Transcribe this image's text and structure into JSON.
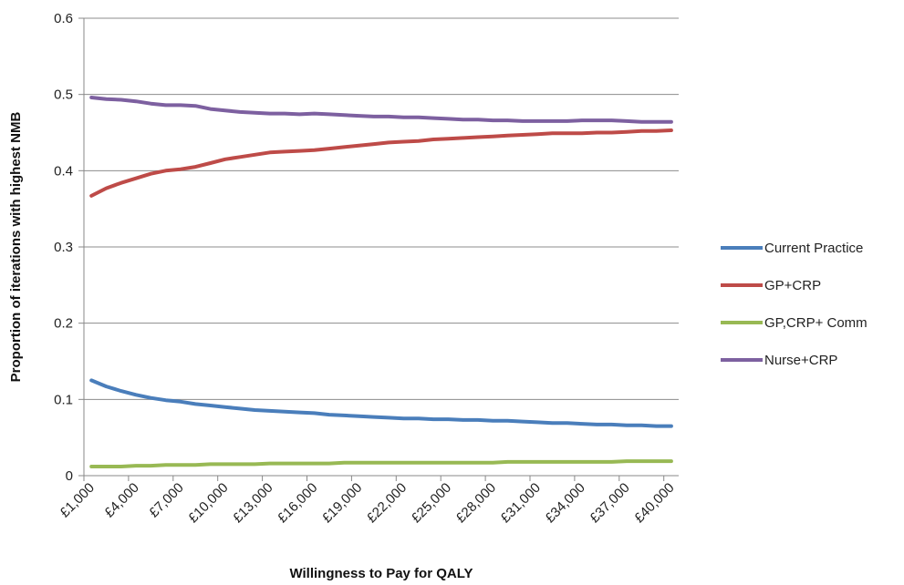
{
  "chart_data": {
    "type": "line",
    "xlabel": "Willingness to Pay for QALY",
    "ylabel": "Proportion of iterations with highest NMB",
    "ylim": [
      0,
      0.6
    ],
    "yticks": [
      0,
      0.1,
      0.2,
      0.3,
      0.4,
      0.5,
      0.6
    ],
    "ytick_labels": [
      "0",
      "0.1",
      "0.2",
      "0.3",
      "0.4",
      "0.5",
      "0.6"
    ],
    "x": [
      1000,
      2000,
      3000,
      4000,
      5000,
      6000,
      7000,
      8000,
      9000,
      10000,
      11000,
      12000,
      13000,
      14000,
      15000,
      16000,
      17000,
      18000,
      19000,
      20000,
      21000,
      22000,
      23000,
      24000,
      25000,
      26000,
      27000,
      28000,
      29000,
      30000,
      31000,
      32000,
      33000,
      34000,
      35000,
      36000,
      37000,
      38000,
      39000,
      40000
    ],
    "xtick_labels": [
      "£1,000",
      "£4,000",
      "£7,000",
      "£10,000",
      "£13,000",
      "£16,000",
      "£19,000",
      "£22,000",
      "£25,000",
      "£28,000",
      "£31,000",
      "£34,000",
      "£37,000",
      "£40,000"
    ],
    "grid": "horizontal",
    "legend": "right",
    "series": [
      {
        "name": "Current Practice",
        "color": "#4a7ebb",
        "values": [
          0.125,
          0.117,
          0.111,
          0.106,
          0.102,
          0.099,
          0.097,
          0.094,
          0.092,
          0.09,
          0.088,
          0.086,
          0.085,
          0.084,
          0.083,
          0.082,
          0.08,
          0.079,
          0.078,
          0.077,
          0.076,
          0.075,
          0.075,
          0.074,
          0.074,
          0.073,
          0.073,
          0.072,
          0.072,
          0.071,
          0.07,
          0.069,
          0.069,
          0.068,
          0.067,
          0.067,
          0.066,
          0.066,
          0.065,
          0.065
        ]
      },
      {
        "name": "GP+CRP",
        "color": "#be4b48",
        "values": [
          0.367,
          0.377,
          0.384,
          0.39,
          0.396,
          0.4,
          0.402,
          0.405,
          0.41,
          0.415,
          0.418,
          0.421,
          0.424,
          0.425,
          0.426,
          0.427,
          0.429,
          0.431,
          0.433,
          0.435,
          0.437,
          0.438,
          0.439,
          0.441,
          0.442,
          0.443,
          0.444,
          0.445,
          0.446,
          0.447,
          0.448,
          0.449,
          0.449,
          0.449,
          0.45,
          0.45,
          0.451,
          0.452,
          0.452,
          0.453
        ]
      },
      {
        "name": "GP,CRP+ Comm",
        "color": "#98b954",
        "values": [
          0.012,
          0.012,
          0.012,
          0.013,
          0.013,
          0.014,
          0.014,
          0.014,
          0.015,
          0.015,
          0.015,
          0.015,
          0.016,
          0.016,
          0.016,
          0.016,
          0.016,
          0.017,
          0.017,
          0.017,
          0.017,
          0.017,
          0.017,
          0.017,
          0.017,
          0.017,
          0.017,
          0.017,
          0.018,
          0.018,
          0.018,
          0.018,
          0.018,
          0.018,
          0.018,
          0.018,
          0.019,
          0.019,
          0.019,
          0.019
        ]
      },
      {
        "name": "Nurse+CRP",
        "color": "#7d60a0",
        "values": [
          0.496,
          0.494,
          0.493,
          0.491,
          0.488,
          0.486,
          0.486,
          0.485,
          0.481,
          0.479,
          0.477,
          0.476,
          0.475,
          0.475,
          0.474,
          0.475,
          0.474,
          0.473,
          0.472,
          0.471,
          0.471,
          0.47,
          0.47,
          0.469,
          0.468,
          0.467,
          0.467,
          0.466,
          0.466,
          0.465,
          0.465,
          0.465,
          0.465,
          0.466,
          0.466,
          0.466,
          0.465,
          0.464,
          0.464,
          0.464
        ]
      }
    ]
  }
}
